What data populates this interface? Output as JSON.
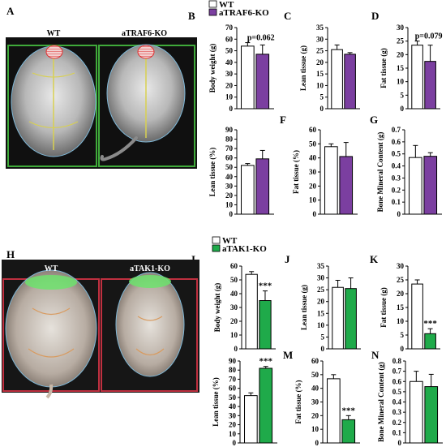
{
  "figure": {
    "panel_letters": [
      "A",
      "B",
      "C",
      "D",
      "E",
      "F",
      "G",
      "H",
      "I",
      "J",
      "K",
      "L",
      "M",
      "N"
    ]
  },
  "image_panels": [
    {
      "letter": "A",
      "labels": [
        "WT",
        "aTRAF6-KO"
      ],
      "frame_color": "#3faa3a",
      "head_marker_color": "#e03030"
    },
    {
      "letter": "H",
      "labels": [
        "WT",
        "aTAK1-KO"
      ],
      "frame_color": "#c03040",
      "head_marker_color": "#6de36d"
    }
  ],
  "legends": [
    {
      "items": [
        {
          "name": "WT",
          "color": "#ffffff"
        },
        {
          "name": "aTRAF6-KO",
          "color": "#7b3fa0"
        }
      ]
    },
    {
      "items": [
        {
          "name": "WT",
          "color": "#ffffff"
        },
        {
          "name": "aTAK1-KO",
          "color": "#1faa4a"
        }
      ]
    }
  ],
  "chart_data": [
    {
      "letter": "B",
      "type": "bar",
      "ylabel": "Body weight (g)",
      "ylim": [
        0,
        70
      ],
      "ticks": [
        0,
        10,
        20,
        30,
        40,
        50,
        60,
        70
      ],
      "categories": [
        "WT",
        "aTRAF6-KO"
      ],
      "values": [
        54,
        47
      ],
      "errors": [
        3,
        8
      ],
      "colors": [
        "#ffffff",
        "#7b3fa0"
      ],
      "annotation": "p=0.062"
    },
    {
      "letter": "C",
      "type": "bar",
      "ylabel": "Lean tissue (g)",
      "ylim": [
        0,
        35
      ],
      "ticks": [
        0,
        5,
        10,
        15,
        20,
        25,
        30,
        35
      ],
      "categories": [
        "WT",
        "aTRAF6-KO"
      ],
      "values": [
        25.5,
        23.5
      ],
      "errors": [
        2,
        0.7
      ],
      "colors": [
        "#ffffff",
        "#7b3fa0"
      ],
      "annotation": ""
    },
    {
      "letter": "D",
      "type": "bar",
      "ylabel": "Fat tissue (g)",
      "ylim": [
        0,
        30
      ],
      "ticks": [
        0,
        5,
        10,
        15,
        20,
        25,
        30
      ],
      "categories": [
        "WT",
        "aTRAF6-KO"
      ],
      "values": [
        23.5,
        17.5
      ],
      "errors": [
        1.5,
        6
      ],
      "colors": [
        "#ffffff",
        "#7b3fa0"
      ],
      "annotation": "p=0.079"
    },
    {
      "letter": "E",
      "type": "bar",
      "ylabel": "Lean tissue (%)",
      "ylim": [
        0,
        90
      ],
      "ticks": [
        0,
        10,
        20,
        30,
        40,
        50,
        60,
        70,
        80,
        90
      ],
      "categories": [
        "WT",
        "aTRAF6-KO"
      ],
      "values": [
        52,
        59
      ],
      "errors": [
        2,
        9
      ],
      "colors": [
        "#ffffff",
        "#7b3fa0"
      ],
      "annotation": ""
    },
    {
      "letter": "F",
      "type": "bar",
      "ylabel": "Fat tissue (%)",
      "ylim": [
        0,
        60
      ],
      "ticks": [
        0,
        10,
        20,
        30,
        40,
        50,
        60
      ],
      "categories": [
        "WT",
        "aTRAF6-KO"
      ],
      "values": [
        48,
        41
      ],
      "errors": [
        2,
        10
      ],
      "colors": [
        "#ffffff",
        "#7b3fa0"
      ],
      "annotation": ""
    },
    {
      "letter": "G",
      "type": "bar",
      "ylabel": "Bone Mineral Content (g)",
      "ylim": [
        0,
        0.7
      ],
      "ticks": [
        0,
        0.1,
        0.2,
        0.3,
        0.4,
        0.5,
        0.6,
        0.7
      ],
      "categories": [
        "WT",
        "aTRAF6-KO"
      ],
      "values": [
        0.47,
        0.48
      ],
      "errors": [
        0.1,
        0.03
      ],
      "colors": [
        "#ffffff",
        "#7b3fa0"
      ],
      "annotation": ""
    },
    {
      "letter": "I",
      "type": "bar",
      "ylabel": "Body weight (g)",
      "ylim": [
        0,
        60
      ],
      "ticks": [
        0,
        10,
        20,
        30,
        40,
        50,
        60
      ],
      "categories": [
        "WT",
        "aTAK1-KO"
      ],
      "values": [
        54,
        35
      ],
      "errors": [
        2,
        7
      ],
      "colors": [
        "#ffffff",
        "#1faa4a"
      ],
      "annotation": "***"
    },
    {
      "letter": "J",
      "type": "bar",
      "ylabel": "Lean tissue (g)",
      "ylim": [
        0,
        35
      ],
      "ticks": [
        0,
        5,
        10,
        15,
        20,
        25,
        30,
        35
      ],
      "categories": [
        "WT",
        "aTAK1-KO"
      ],
      "values": [
        26,
        25.5
      ],
      "errors": [
        3,
        4.5
      ],
      "colors": [
        "#ffffff",
        "#1faa4a"
      ],
      "annotation": ""
    },
    {
      "letter": "K",
      "type": "bar",
      "ylabel": "Fat tissue (g)",
      "ylim": [
        0,
        30
      ],
      "ticks": [
        0,
        5,
        10,
        15,
        20,
        25,
        30
      ],
      "categories": [
        "WT",
        "aTAK1-KO"
      ],
      "values": [
        23.5,
        5.5
      ],
      "errors": [
        1.5,
        1.8
      ],
      "colors": [
        "#ffffff",
        "#1faa4a"
      ],
      "annotation": "***"
    },
    {
      "letter": "L",
      "type": "bar",
      "ylabel": "Lean tissue (%)",
      "ylim": [
        0,
        90
      ],
      "ticks": [
        0,
        10,
        20,
        30,
        40,
        50,
        60,
        70,
        80,
        90
      ],
      "categories": [
        "WT",
        "aTAK1-KO"
      ],
      "values": [
        52,
        82
      ],
      "errors": [
        3,
        2
      ],
      "colors": [
        "#ffffff",
        "#1faa4a"
      ],
      "annotation": "***"
    },
    {
      "letter": "M",
      "type": "bar",
      "ylabel": "Fat tissue (%)",
      "ylim": [
        0,
        60
      ],
      "ticks": [
        0,
        10,
        20,
        30,
        40,
        50,
        60
      ],
      "categories": [
        "WT",
        "aTAK1-KO"
      ],
      "values": [
        47,
        17
      ],
      "errors": [
        3,
        3
      ],
      "colors": [
        "#ffffff",
        "#1faa4a"
      ],
      "annotation": "***"
    },
    {
      "letter": "N",
      "type": "bar",
      "ylabel": "Bone Mineral Content (g)",
      "ylim": [
        0,
        0.8
      ],
      "ticks": [
        0,
        0.1,
        0.2,
        0.3,
        0.4,
        0.5,
        0.6,
        0.7,
        0.8
      ],
      "categories": [
        "WT",
        "aTAK1-KO"
      ],
      "values": [
        0.6,
        0.55
      ],
      "errors": [
        0.1,
        0.12
      ],
      "colors": [
        "#ffffff",
        "#1faa4a"
      ],
      "annotation": ""
    }
  ]
}
